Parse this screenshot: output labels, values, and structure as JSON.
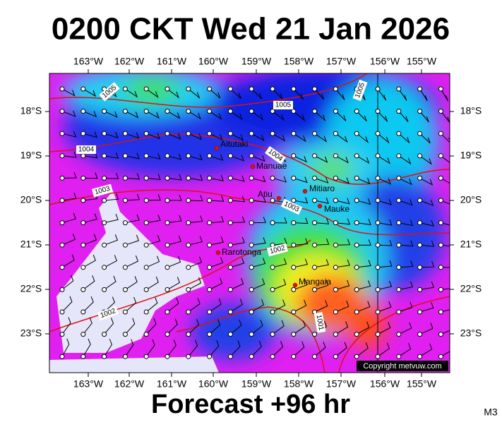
{
  "header": {
    "title": "0200 CKT Wed 21 Jan 2026"
  },
  "map": {
    "lon_labels": [
      "163°W",
      "162°W",
      "161°W",
      "160°W",
      "159°W",
      "158°W",
      "157°W",
      "156°W",
      "155°W"
    ],
    "lat_labels": [
      "18°S",
      "19°S",
      "20°S",
      "21°S",
      "22°S",
      "23°S"
    ],
    "places": [
      "Aitutaki",
      "Manuae",
      "Atiu",
      "Mitiaro",
      "Mauke",
      "Rarotonga",
      "Mangaia"
    ],
    "isobar_labels": [
      "1005",
      "1005",
      "1005",
      "1004",
      "1004",
      "1003",
      "1003",
      "1002",
      "1002",
      "1001"
    ],
    "copyright": "Copyright metvuw.com"
  },
  "footer": {
    "forecast": "Forecast +96 hr",
    "model": "M3"
  }
}
